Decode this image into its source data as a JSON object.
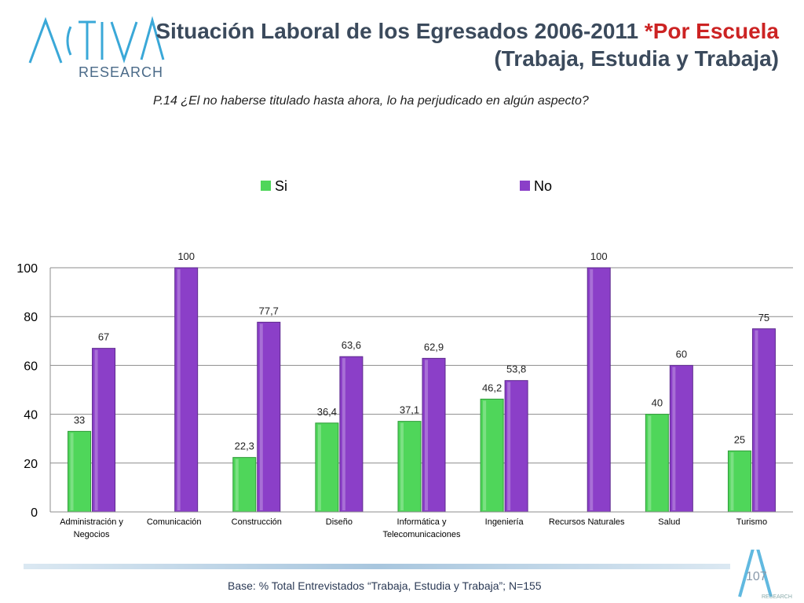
{
  "brand": {
    "logo_top": "ACTIVA",
    "logo_bottom": "RESEARCH",
    "footer_logo": "RESEARCH"
  },
  "header": {
    "title_line1": "Situación Laboral de los Egresados 2006-2011 ",
    "title_accent": "*Por Escuela",
    "title_line2": "(Trabaja, Estudia y Trabaja)"
  },
  "question": "P.14 ¿El no haberse titulado hasta ahora, lo ha perjudicado en algún aspecto?",
  "chart_data": {
    "type": "bar",
    "title": "",
    "xlabel": "",
    "ylabel": "",
    "ylim": [
      0,
      100
    ],
    "yticks": [
      0,
      20,
      40,
      60,
      80,
      100
    ],
    "legend_position": "top",
    "categories": [
      [
        "Administración y",
        "Negocios"
      ],
      [
        "Comunicación"
      ],
      [
        "Construcción"
      ],
      [
        "Diseño"
      ],
      [
        "Informática y",
        "Telecomunicaciones"
      ],
      [
        "Ingeniería"
      ],
      [
        "Recursos Naturales"
      ],
      [
        "Salud"
      ],
      [
        "Turismo"
      ]
    ],
    "series": [
      {
        "name": "Si",
        "color": "#4fd65a",
        "values": [
          33,
          null,
          22.3,
          36.4,
          37.1,
          46.2,
          null,
          40,
          25
        ],
        "labels": [
          "33",
          "",
          "22,3",
          "36,4",
          "37,1",
          "46,2",
          "",
          "40",
          "25"
        ]
      },
      {
        "name": "No",
        "color": "#8b3fc8",
        "values": [
          67,
          100,
          77.7,
          63.6,
          62.9,
          53.8,
          100,
          60,
          75
        ],
        "labels": [
          "67",
          "100",
          "77,7",
          "63,6",
          "62,9",
          "53,8",
          "100",
          "60",
          "75"
        ]
      }
    ]
  },
  "footer": {
    "base": "Base: % Total Entrevistados “Trabaja, Estudia y Trabaja”; N=155",
    "page": "107"
  }
}
